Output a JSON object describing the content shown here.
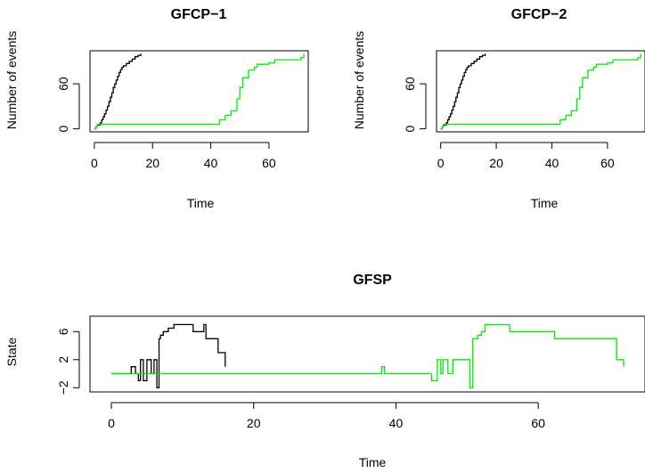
{
  "chart_data": [
    {
      "type": "line",
      "title": "GFCP−1",
      "xlabel": "Time",
      "ylabel": "Number of events",
      "xlim": [
        -1.5,
        73.5
      ],
      "ylim": [
        -4,
        104
      ],
      "xticks": [
        0,
        20,
        40,
        60
      ],
      "yticks": [
        0,
        60
      ],
      "series": [
        {
          "color": "#000000",
          "step": true,
          "x": [
            0,
            0.5,
            1,
            2,
            2.5,
            3,
            3.5,
            4,
            4.5,
            5,
            5.5,
            6,
            6.5,
            7,
            7.5,
            8,
            8.5,
            9,
            9.5,
            10,
            11,
            12,
            13,
            14,
            15,
            16
          ],
          "y": [
            0,
            3,
            5,
            8,
            12,
            16,
            20,
            25,
            30,
            36,
            42,
            48,
            55,
            60,
            65,
            70,
            75,
            79,
            82,
            84,
            87,
            90,
            93,
            96,
            98,
            100
          ]
        },
        {
          "color": "#00ee00",
          "step": true,
          "x": [
            0,
            0.5,
            1,
            38,
            43,
            45,
            47,
            49,
            50,
            51,
            53,
            55,
            56,
            60,
            62,
            70,
            71,
            72
          ],
          "y": [
            0,
            3,
            6,
            6,
            12,
            18,
            24,
            40,
            55,
            68,
            78,
            82,
            86,
            88,
            92,
            92,
            95,
            100
          ]
        }
      ]
    },
    {
      "type": "line",
      "title": "GFCP−2",
      "xlabel": "Time",
      "ylabel": "Number of events",
      "xlim": [
        -1.5,
        73.5
      ],
      "ylim": [
        -4,
        104
      ],
      "xticks": [
        0,
        20,
        40,
        60
      ],
      "yticks": [
        0,
        60
      ],
      "series": [
        {
          "color": "#000000",
          "step": true,
          "x": [
            0,
            0.5,
            1,
            2,
            2.5,
            3,
            3.5,
            4,
            4.5,
            5,
            5.5,
            6,
            6.5,
            7,
            7.5,
            8,
            8.5,
            9,
            9.5,
            10,
            11,
            12,
            13,
            14,
            15,
            16
          ],
          "y": [
            0,
            3,
            5,
            8,
            12,
            16,
            20,
            25,
            30,
            36,
            42,
            48,
            55,
            60,
            65,
            70,
            75,
            79,
            82,
            84,
            87,
            90,
            93,
            96,
            98,
            100
          ]
        },
        {
          "color": "#00ee00",
          "step": true,
          "x": [
            0,
            0.5,
            1,
            38,
            43,
            45,
            47,
            49,
            50,
            51,
            53,
            55,
            56,
            60,
            62,
            70,
            71,
            72
          ],
          "y": [
            0,
            3,
            6,
            6,
            12,
            18,
            24,
            40,
            55,
            68,
            78,
            82,
            86,
            88,
            92,
            92,
            95,
            100
          ]
        }
      ]
    },
    {
      "type": "line",
      "title": "GFSP",
      "xlabel": "Time",
      "ylabel": "State",
      "xlim": [
        -3,
        75
      ],
      "ylim": [
        -2.6,
        8.2
      ],
      "xticks": [
        0,
        20,
        40,
        60
      ],
      "yticks": [
        -2,
        2,
        6
      ],
      "series": [
        {
          "color": "#000000",
          "step": true,
          "x": [
            0,
            2.8,
            3.4,
            3.8,
            4.1,
            4.5,
            5,
            5.6,
            6,
            6.4,
            6.7,
            6.9,
            7.3,
            8,
            8.8,
            10.5,
            11.5,
            13,
            13.3,
            14.5,
            15,
            16
          ],
          "y": [
            0,
            1,
            0,
            -1,
            2,
            -1,
            2,
            0,
            2,
            -2,
            5,
            5.5,
            6,
            6.5,
            7,
            7,
            6,
            7,
            5,
            5,
            3,
            1
          ]
        },
        {
          "color": "#00ee00",
          "step": true,
          "x": [
            0,
            38,
            38.4,
            45,
            45.8,
            46.3,
            46.6,
            47.3,
            48,
            50,
            50.4,
            50.8,
            51.5,
            52,
            52.5,
            53.5,
            56,
            62,
            62.3,
            70,
            71,
            72
          ],
          "y": [
            0,
            1,
            0,
            -1,
            2,
            0,
            2,
            0,
            2,
            2,
            -2,
            5,
            5.5,
            6,
            7,
            7,
            6,
            6,
            5,
            5,
            2,
            1
          ]
        }
      ]
    }
  ]
}
